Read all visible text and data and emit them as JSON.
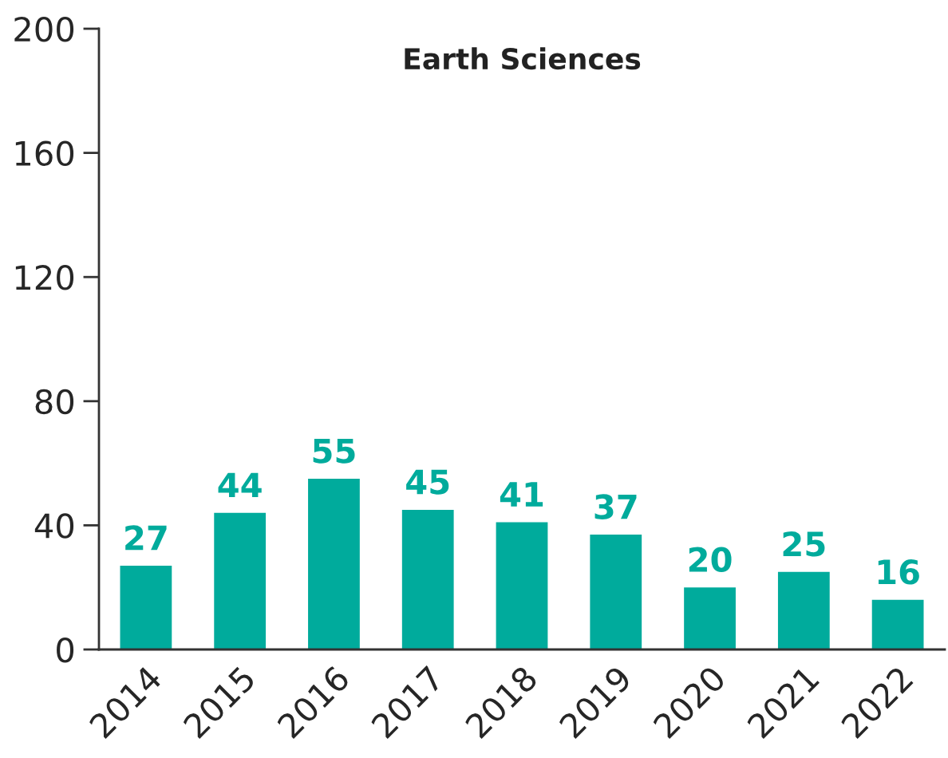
{
  "chart_data": {
    "type": "bar",
    "title": "Earth Sciences",
    "categories": [
      "2014",
      "2015",
      "2016",
      "2017",
      "2018",
      "2019",
      "2020",
      "2021",
      "2022"
    ],
    "values": [
      27,
      44,
      55,
      45,
      41,
      37,
      20,
      25,
      16
    ],
    "color": "#00ab9c",
    "ylim": [
      0,
      200
    ],
    "yticks": [
      0,
      40,
      80,
      120,
      160,
      200
    ],
    "data_labels": true,
    "grid": false,
    "legend": false
  }
}
